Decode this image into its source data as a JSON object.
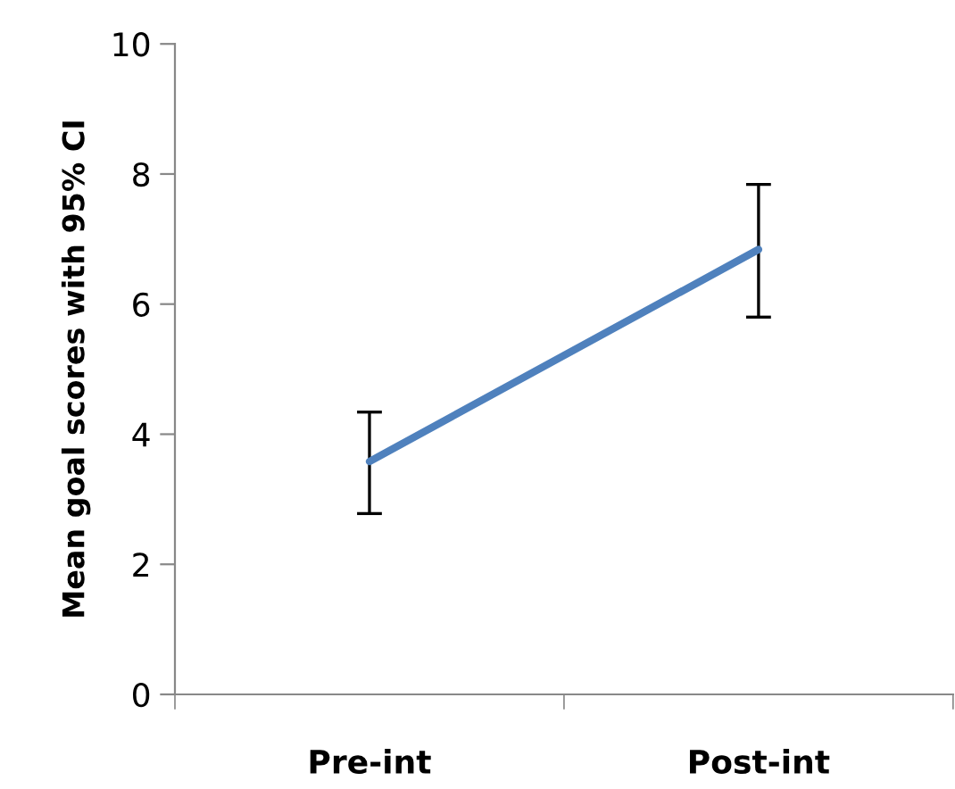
{
  "chart_data": {
    "type": "line",
    "ylabel": "Mean goal scores with 95% CI",
    "categories": [
      "Pre-int",
      "Post-int"
    ],
    "series": [
      {
        "color": "#4f81bd",
        "values": [
          3.58,
          6.84
        ],
        "errors": [
          [
            2.78,
            4.34
          ],
          [
            5.8,
            7.84
          ]
        ]
      }
    ],
    "ylim": [
      0,
      10
    ],
    "yticks": [
      0,
      2,
      4,
      6,
      8,
      10
    ],
    "grid": false,
    "marker": "none",
    "line_style": "solid"
  }
}
